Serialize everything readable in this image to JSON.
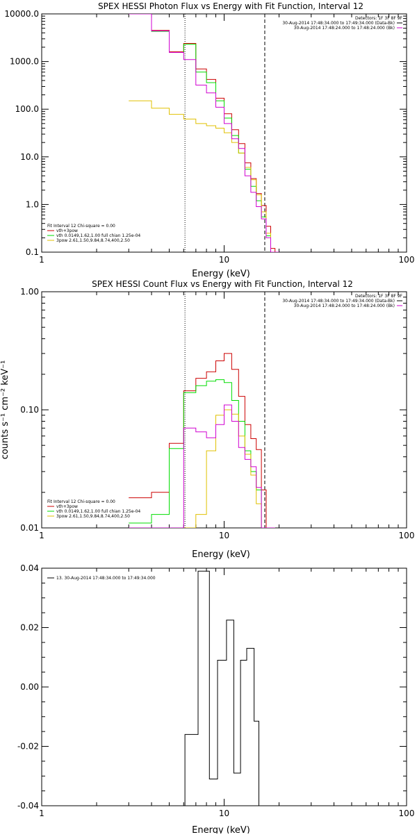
{
  "colors": {
    "background": "#ffffff",
    "axes": "#000000",
    "red": "#cc0000",
    "green": "#00dd00",
    "yellow": "#e0c000",
    "magenta": "#d000d0",
    "purple": "#9000c0"
  },
  "chart_data": [
    {
      "type": "line",
      "title": "SPEX HESSI Photon Flux vs Energy with Fit Function, Interval 12",
      "xlabel": "Energy (keV)",
      "ylabel": "",
      "xscale": "log",
      "yscale": "log",
      "xlim": [
        1,
        100
      ],
      "ylim": [
        0.1,
        10000
      ],
      "x_ticks": [
        {
          "v": 1,
          "label": "1"
        },
        {
          "v": 10,
          "label": "10"
        },
        {
          "v": 100,
          "label": "100"
        }
      ],
      "y_ticks": [
        {
          "v": 10000,
          "label": "10000.0"
        },
        {
          "v": 1000,
          "label": "1000.0"
        },
        {
          "v": 100,
          "label": "100.0"
        },
        {
          "v": 10,
          "label": "10.0"
        },
        {
          "v": 1,
          "label": "1.0"
        },
        {
          "v": 0.1,
          "label": "0.1"
        }
      ],
      "vlines": [
        {
          "x": 6.1,
          "style": "dotted"
        },
        {
          "x": 16.7,
          "style": "dashed"
        }
      ],
      "bin_edges": [
        3.0,
        4.0,
        5.0,
        6.0,
        7.0,
        8.0,
        9.0,
        10.0,
        11.0,
        12.0,
        13.0,
        14.0,
        15.0,
        16.0,
        17.0,
        18.0,
        19.0,
        20.0
      ],
      "series": [
        {
          "name": "vth+3pow",
          "color": "#cc0000",
          "values": [
            50000,
            4500,
            1600,
            2400,
            700,
            420,
            170,
            80,
            37,
            19,
            7.5,
            3.5,
            1.7,
            0.95,
            0.35,
            0.12,
            0.1
          ]
        },
        {
          "name": "vth 0.0149,1.62,1.00 full chian 1.25e-04",
          "color": "#00dd00",
          "values": [
            50000,
            4300,
            1550,
            2300,
            600,
            360,
            150,
            65,
            28,
            12,
            5.5,
            2.4,
            1.2,
            0.55,
            0.22,
            0.1,
            0.1
          ]
        },
        {
          "name": "3pow 2.61,1.50,9.84,8.74,400,2.50",
          "color": "#e0c000",
          "values": [
            150,
            105,
            78,
            62,
            50,
            45,
            40,
            32,
            20,
            12,
            6,
            3.3,
            1.6,
            0.7,
            0.25,
            0.1,
            0.1
          ]
        },
        {
          "name": "",
          "color": "#d000d0",
          "values": [
            50000,
            4400,
            1550,
            1100,
            320,
            220,
            110,
            50,
            24,
            15,
            4.0,
            1.8,
            0.9,
            0.5,
            0.2,
            0.1,
            0.1
          ]
        }
      ],
      "legend": {
        "placement": "bottom-left",
        "header": "Fit Interval 12    Chi-square = 0.00",
        "items": [
          {
            "text": "vth+3pow",
            "color": "#cc0000"
          },
          {
            "text": "vth 0.0149,1.62,1.00  full chian 1.25e-04",
            "color": "#00dd00"
          },
          {
            "text": "3pow 2.61,1.50,9.84,8.74,400,2.50",
            "color": "#e0c000"
          }
        ]
      },
      "legend2": {
        "placement": "top-right",
        "header": "Detectors: 1F 3F 8F 9F",
        "items": [
          {
            "text": "30-Aug-2014 17:48:34.000 to 17:49:34.000 (Data-Bk)",
            "color": "#000000"
          },
          {
            "text": "30-Aug-2014 17:48:24.000 to 17:48:24.000 (Bk)",
            "color": "#d000d0"
          }
        ]
      }
    },
    {
      "type": "line",
      "title": "SPEX HESSI Count Flux vs Energy with Fit Function, Interval 12",
      "xlabel": "Energy (keV)",
      "ylabel": "counts s⁻¹ cm⁻² keV⁻¹",
      "xscale": "log",
      "yscale": "log",
      "xlim": [
        1,
        100
      ],
      "ylim": [
        0.01,
        1.0
      ],
      "x_ticks": [
        {
          "v": 1,
          "label": "1"
        },
        {
          "v": 10,
          "label": "10"
        },
        {
          "v": 100,
          "label": "100"
        }
      ],
      "y_ticks": [
        {
          "v": 1.0,
          "label": "1.00"
        },
        {
          "v": 0.1,
          "label": "0.10"
        },
        {
          "v": 0.01,
          "label": "0.01"
        }
      ],
      "vlines": [
        {
          "x": 6.1,
          "style": "dotted"
        },
        {
          "x": 16.7,
          "style": "dashed"
        }
      ],
      "bin_edges": [
        3.0,
        4.0,
        5.0,
        6.0,
        7.0,
        8.0,
        9.0,
        10.0,
        11.0,
        12.0,
        13.0,
        14.0,
        15.0,
        16.0,
        17.0,
        18.0,
        19.0
      ],
      "series": [
        {
          "name": "vth+3pow",
          "color": "#cc0000",
          "values": [
            0.018,
            0.02,
            0.052,
            0.145,
            0.185,
            0.21,
            0.26,
            0.3,
            0.22,
            0.13,
            0.075,
            0.057,
            0.046,
            0.021,
            0.01,
            0.01
          ]
        },
        {
          "name": "vth 0.0149,1.62,1.00 full chian 1.25e-04",
          "color": "#00dd00",
          "values": [
            0.011,
            0.013,
            0.047,
            0.14,
            0.16,
            0.175,
            0.18,
            0.17,
            0.12,
            0.08,
            0.045,
            0.03,
            0.021,
            0.01,
            0.01,
            0.01
          ]
        },
        {
          "name": "3pow 2.61,1.50,9.84,8.74,400,2.50",
          "color": "#e0c000",
          "values": [
            0.01,
            0.01,
            0.01,
            0.01,
            0.013,
            0.045,
            0.09,
            0.1,
            0.092,
            0.06,
            0.042,
            0.028,
            0.016,
            0.01,
            0.01,
            0.01
          ]
        },
        {
          "name": "",
          "color": "#d000d0",
          "values": [
            0.01,
            0.01,
            0.01,
            0.07,
            0.065,
            0.058,
            0.075,
            0.11,
            0.08,
            0.048,
            0.038,
            0.033,
            0.022,
            0.01,
            0.01,
            0.01
          ]
        }
      ],
      "legend": {
        "placement": "bottom-left",
        "header": "Fit Interval 12    Chi-square = 0.00",
        "items": [
          {
            "text": "vth+3pow",
            "color": "#cc0000"
          },
          {
            "text": "vth 0.0149,1.62,1.00  full chian 1.25e-04",
            "color": "#00dd00"
          },
          {
            "text": "3pow 2.61,1.50,9.84,8.74,400,2.50",
            "color": "#e0c000"
          }
        ]
      },
      "legend2": {
        "placement": "top-right",
        "header": "Detectors: 1F 3F 8F 9F",
        "items": [
          {
            "text": "30-Aug-2014 17:48:34.000 to 17:49:34.000 (Data-Bk)",
            "color": "#000000"
          },
          {
            "text": "30-Aug-2014 17:48:24.000 to 17:48:24.000 (Bk)",
            "color": "#d000d0"
          }
        ]
      }
    },
    {
      "type": "line",
      "title": "",
      "xlabel": "Energy (keV)",
      "ylabel": "",
      "xscale": "log",
      "yscale": "linear",
      "xlim": [
        1,
        100
      ],
      "ylim": [
        -0.04,
        0.04
      ],
      "x_ticks": [
        {
          "v": 1,
          "label": "1"
        },
        {
          "v": 10,
          "label": "10"
        },
        {
          "v": 100,
          "label": "100"
        }
      ],
      "y_ticks": [
        {
          "v": 0.04,
          "label": "0.04"
        },
        {
          "v": 0.02,
          "label": "0.02"
        },
        {
          "v": 0.0,
          "label": "0.00"
        },
        {
          "v": -0.02,
          "label": "-0.02"
        },
        {
          "v": -0.04,
          "label": "-0.04"
        }
      ],
      "vlines": [],
      "bin_edges": [
        6.1,
        7.2,
        8.3,
        9.2,
        10.3,
        11.3,
        12.3,
        13.3,
        14.6,
        15.5,
        16.6
      ],
      "series": [
        {
          "name": "13. 30-Aug-2014 17:48:34.000 to 17:49:34.000",
          "color": "#000000",
          "baseline_from": -0.04,
          "baseline_to": -0.04,
          "values": [
            -0.016,
            0.039,
            -0.031,
            0.009,
            0.0225,
            -0.029,
            0.009,
            0.013,
            -0.0115,
            -0.04
          ]
        }
      ],
      "legend": {
        "placement": "top-left",
        "header": "",
        "items": [
          {
            "text": "13. 30-Aug-2014 17:48:34.000 to 17:49:34.000",
            "color": "#000000"
          }
        ]
      },
      "legend2": null
    }
  ]
}
